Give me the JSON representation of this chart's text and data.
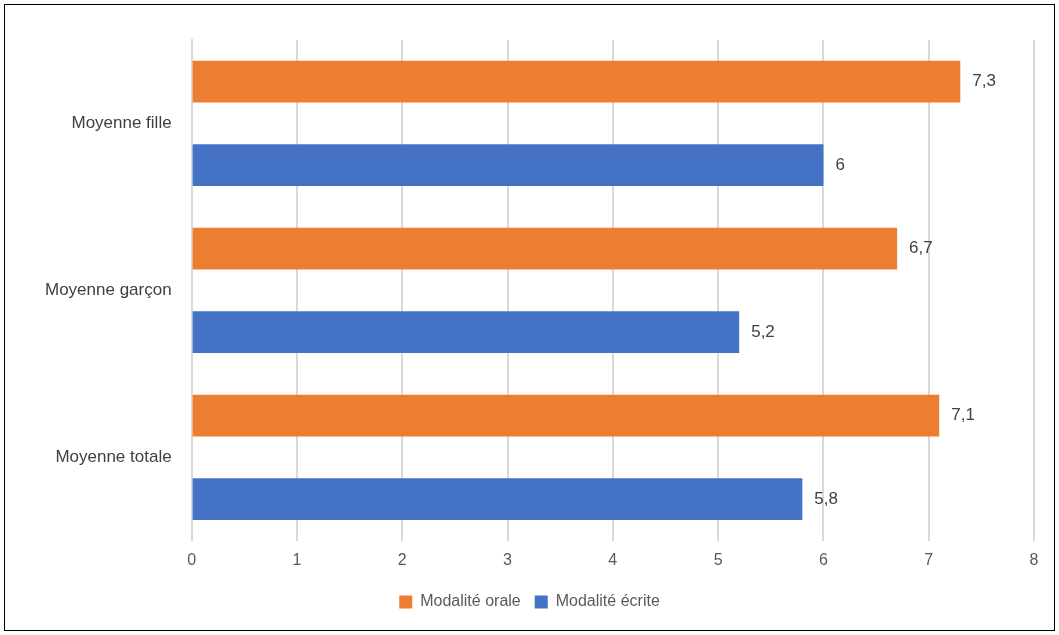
{
  "chart_data": {
    "type": "bar",
    "orientation": "horizontal",
    "categories": [
      "Moyenne fille",
      "Moyenne garçon",
      "Moyenne totale"
    ],
    "series": [
      {
        "name": "Modalité orale",
        "color": "#ed7d31",
        "values": [
          7.3,
          6.7,
          7.1
        ],
        "value_labels": [
          "7,3",
          "6,7",
          "7,1"
        ]
      },
      {
        "name": "Modalité écrite",
        "color": "#4472c4",
        "values": [
          6,
          5.2,
          5.8
        ],
        "value_labels": [
          "6",
          "5,2",
          "5,8"
        ]
      }
    ],
    "xlim": [
      0,
      8
    ],
    "xticks": [
      0,
      1,
      2,
      3,
      4,
      5,
      6,
      7,
      8
    ],
    "grid": "x",
    "legend": "bottom"
  }
}
